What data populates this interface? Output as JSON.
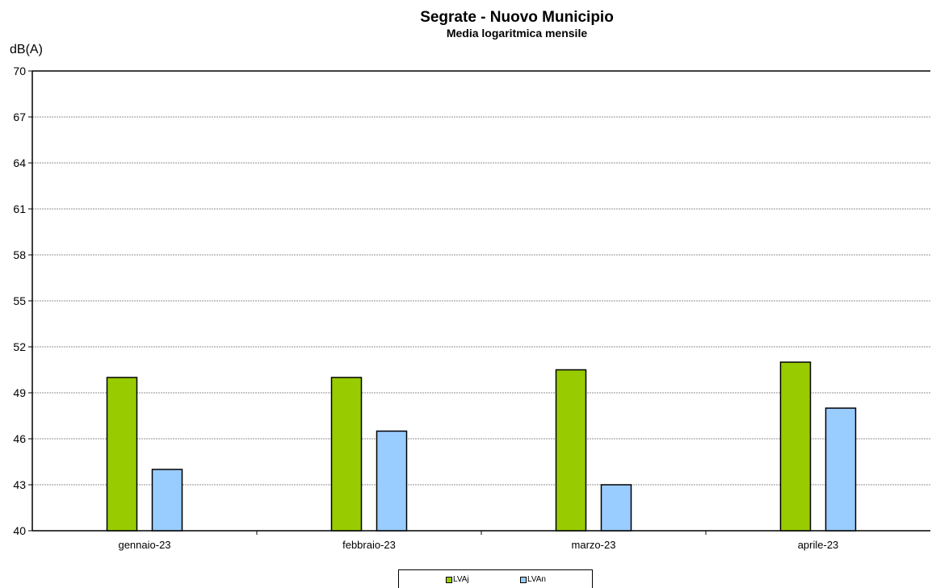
{
  "chart_data": {
    "type": "bar",
    "title": "Segrate - Nuovo Municipio",
    "subtitle": "Media logaritmica mensile",
    "ylabel": "dB(A)",
    "xlabel": "",
    "categories": [
      "gennaio-23",
      "febbraio-23",
      "marzo-23",
      "aprile-23"
    ],
    "series": [
      {
        "name": "LVAj",
        "color": "#99cc00",
        "values": [
          50,
          50,
          50.5,
          51
        ]
      },
      {
        "name": "LVAn",
        "color": "#99ccff",
        "values": [
          44,
          46.5,
          43,
          48
        ]
      }
    ],
    "ylim": [
      40,
      70
    ],
    "yticks": [
      "40",
      "43",
      "46",
      "49",
      "52",
      "55",
      "58",
      "61",
      "64",
      "67",
      "70"
    ],
    "grid": true,
    "legend_position": "bottom"
  }
}
